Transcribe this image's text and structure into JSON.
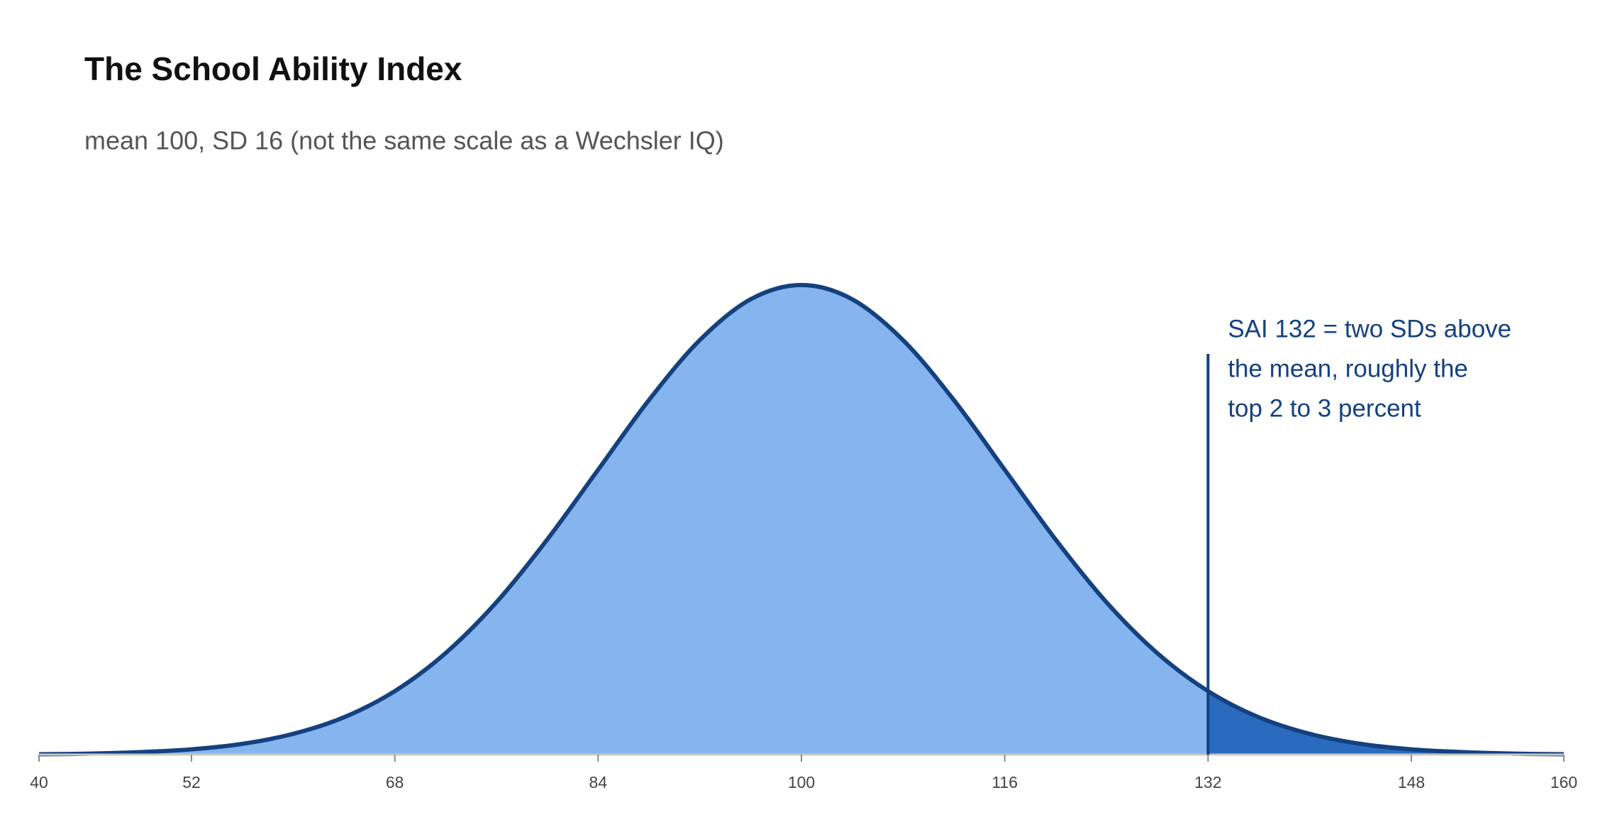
{
  "chart_data": {
    "type": "area",
    "title": "The School Ability Index",
    "subtitle": "mean 100, SD 16 (not the same scale as a Wechsler IQ)",
    "x": [
      40,
      44,
      48,
      52,
      56,
      60,
      64,
      68,
      72,
      76,
      80,
      84,
      88,
      92,
      96,
      100,
      104,
      108,
      112,
      116,
      120,
      124,
      128,
      132,
      136,
      140,
      144,
      148,
      152,
      156,
      160
    ],
    "values": [
      2e-05,
      5e-05,
      0.00013,
      0.00028,
      0.00057,
      0.0011,
      0.00198,
      0.00337,
      0.00539,
      0.00809,
      0.01142,
      0.01512,
      0.01882,
      0.022,
      0.02417,
      0.02493,
      0.02417,
      0.022,
      0.01882,
      0.01512,
      0.01142,
      0.00809,
      0.00539,
      0.00337,
      0.00198,
      0.0011,
      0.00057,
      0.00028,
      0.00013,
      5e-05,
      2e-05
    ],
    "color": "#86b4ee",
    "line_color": "#14417f",
    "highlight_color": "#2a6bbf",
    "xlim": [
      40,
      160
    ],
    "xticks": [
      40,
      52,
      68,
      84,
      100,
      116,
      132,
      148,
      160
    ],
    "ylim": [
      0,
      0.025
    ],
    "annotation": {
      "x": 132,
      "text": [
        "SAI 132 = two SDs above",
        "the mean, roughly the",
        "top 2 to 3 percent"
      ]
    }
  }
}
